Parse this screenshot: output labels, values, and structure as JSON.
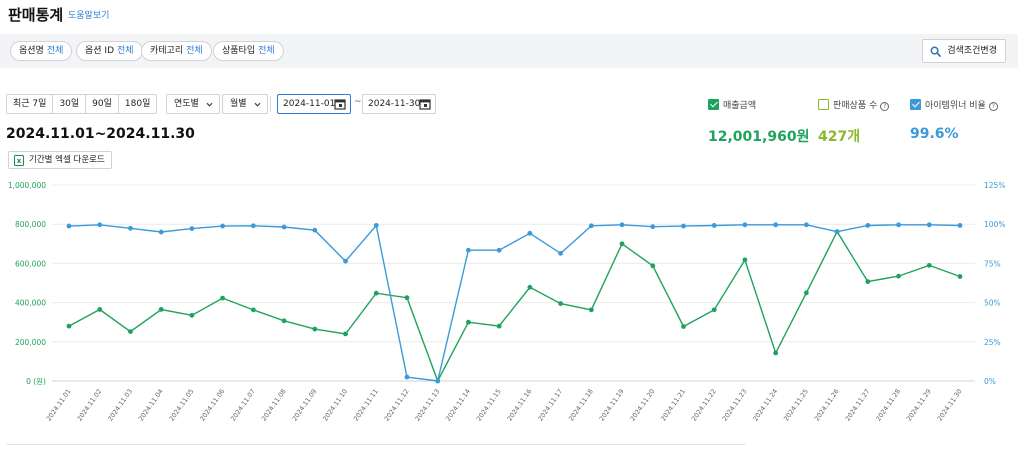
{
  "header": {
    "title": "판매통계",
    "help": "도움말보기"
  },
  "filters": [
    {
      "label": "옵션명",
      "value": "전체"
    },
    {
      "label": "옵션 ID",
      "value": "전체"
    },
    {
      "label": "카테고리",
      "value": "전체"
    },
    {
      "label": "상품타입",
      "value": "전체"
    }
  ],
  "search_button": "검색조건변경",
  "ranges": [
    "최근 7일",
    "30일",
    "90일",
    "180일"
  ],
  "dropdowns": {
    "year": "연도별",
    "month": "월별"
  },
  "dates": {
    "start": "2024-11-01",
    "separator": "~",
    "end": "2024-11-30"
  },
  "period_title": "2024.11.01~2024.11.30",
  "excel_button": "기간별 엑셀 다운로드",
  "metrics": [
    {
      "label": "매출금액",
      "value": "12,001,960원",
      "checked": true,
      "help": false,
      "color": "#1fa35c"
    },
    {
      "label": "판매상품 수",
      "value": "427개",
      "checked": false,
      "help": true,
      "color": "#8cb82b"
    },
    {
      "label": "아이템위너 비율",
      "value": "99.6%",
      "checked": true,
      "help": true,
      "color": "#3b9ad9"
    }
  ],
  "chart_data": {
    "type": "line",
    "title": "",
    "x": [
      "2024.11.01",
      "2024.11.02",
      "2024.11.03",
      "2024.11.04",
      "2024.11.05",
      "2024.11.06",
      "2024.11.07",
      "2024.11.08",
      "2024.11.09",
      "2024.11.10",
      "2024.11.11",
      "2024.11.12",
      "2024.11.13",
      "2024.11.14",
      "2024.11.15",
      "2024.11.16",
      "2024.11.17",
      "2024.11.18",
      "2024.11.19",
      "2024.11.20",
      "2024.11.21",
      "2024.11.22",
      "2024.11.23",
      "2024.11.24",
      "2024.11.25",
      "2024.11.26",
      "2024.11.27",
      "2024.11.28",
      "2024.11.29",
      "2024.11.30"
    ],
    "left_axis": {
      "min": 0,
      "max": 1000000,
      "ticks": [
        "1,000,000",
        "800,000",
        "600,000",
        "400,000",
        "200,000",
        "0 (원)"
      ],
      "color": "#1fa35c"
    },
    "right_axis": {
      "min": 0,
      "max": 125,
      "ticks": [
        "125%",
        "100%",
        "75%",
        "50%",
        "25%",
        "0%"
      ],
      "color": "#3b9ad9"
    },
    "grid": true,
    "series": [
      {
        "axis": "left",
        "color": "#1fa35c",
        "values": [
          280000,
          365000,
          252000,
          365000,
          335000,
          423000,
          363000,
          307000,
          265000,
          240000,
          448000,
          425000,
          0,
          300000,
          280000,
          478000,
          395000,
          363000,
          700000,
          588000,
          278000,
          363000,
          618000,
          143000,
          450000,
          762000,
          507000,
          535000,
          590000,
          533000
        ]
      },
      {
        "axis": "right",
        "color": "#3b9ad9",
        "values": [
          98.8,
          99.6,
          97.4,
          95,
          97.2,
          98.8,
          99,
          98.2,
          96.2,
          76.4,
          99.2,
          2.5,
          0,
          83.4,
          83.4,
          94.2,
          81.4,
          99,
          99.6,
          98.4,
          98.8,
          99.2,
          99.6,
          99.6,
          99.6,
          95.2,
          99.2,
          99.6,
          99.6,
          99.2
        ]
      }
    ]
  }
}
